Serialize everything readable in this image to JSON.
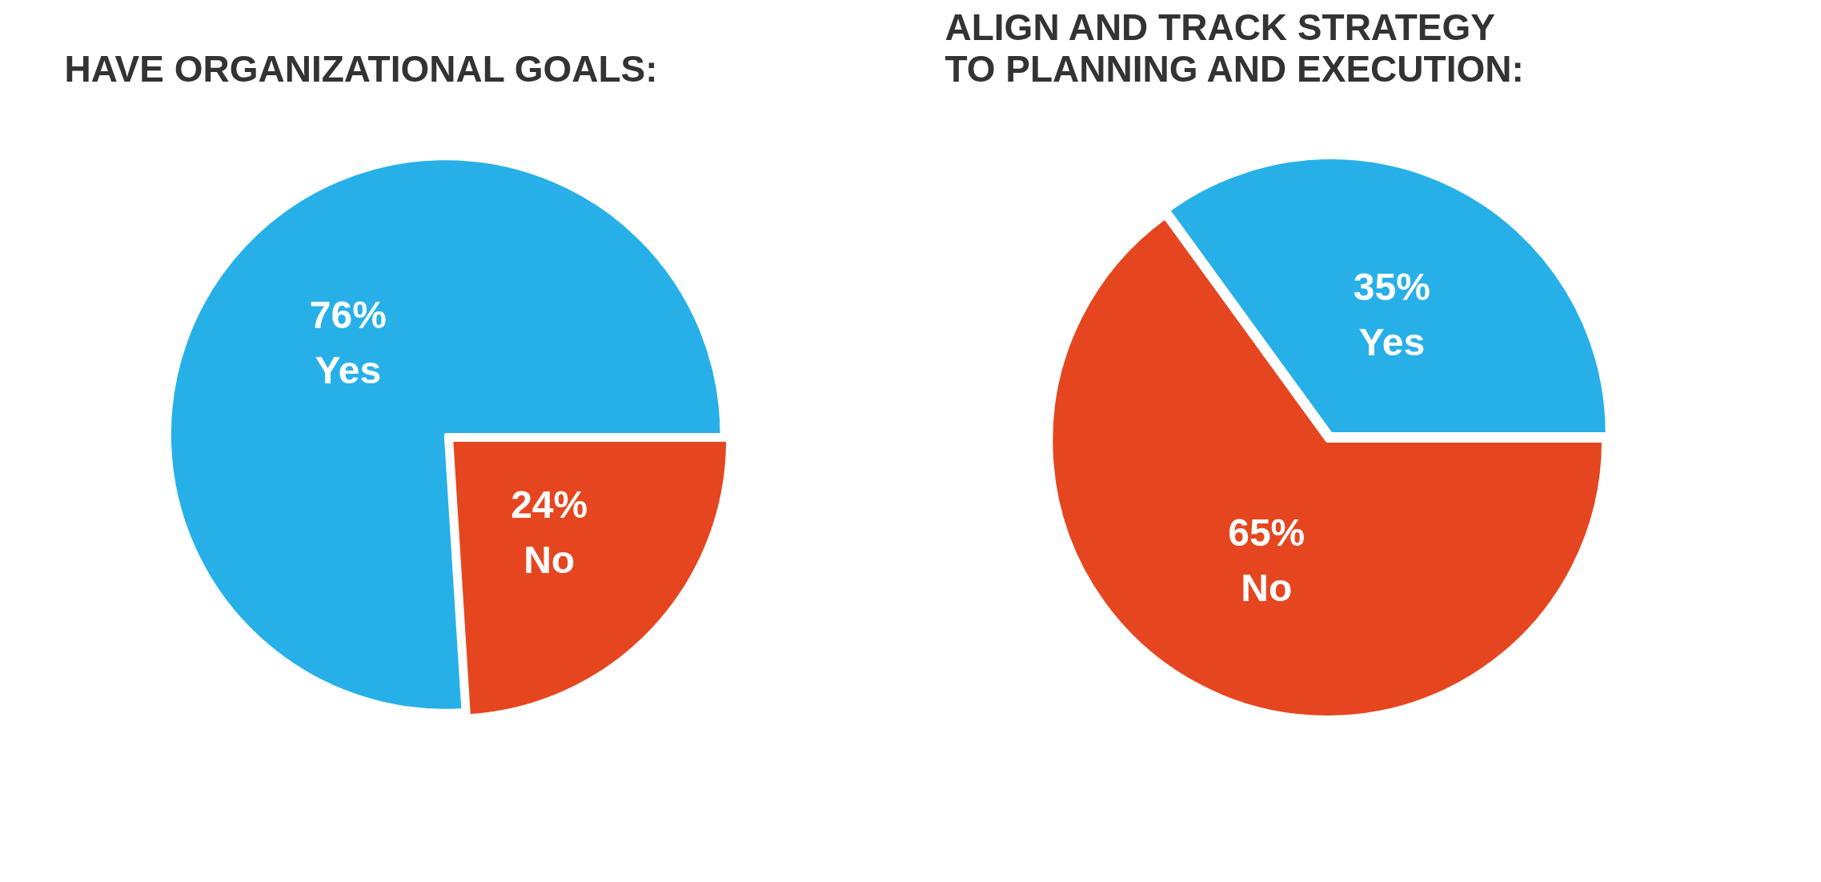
{
  "chart_data": [
    {
      "type": "pie",
      "title": "HAVE ORGANIZATIONAL GOALS:",
      "categories": [
        "Yes",
        "No"
      ],
      "values": [
        76,
        24
      ],
      "colors": [
        "#27b0e8",
        "#e5461f"
      ],
      "value_labels": [
        "76%",
        "24%"
      ]
    },
    {
      "type": "pie",
      "title": "ALIGN AND TRACK STRATEGY\nTO PLANNING AND EXECUTION:",
      "categories": [
        "Yes",
        "No"
      ],
      "values": [
        35,
        65
      ],
      "colors": [
        "#27b0e8",
        "#e5461f"
      ],
      "value_labels": [
        "35%",
        "65%"
      ]
    }
  ]
}
